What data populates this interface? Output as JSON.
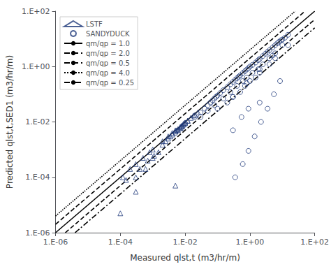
{
  "chart_data": {
    "type": "scatter",
    "xlabel": "Measured qlst,t (m3/hr/m)",
    "ylabel": "Predicted qlst,t,SED1 (m3/hr/m)",
    "log": true,
    "grid": false,
    "legend": "upper left",
    "xlim": [
      1e-06,
      100
    ],
    "ylim": [
      1e-06,
      100
    ],
    "xticks": [
      {
        "value": 1e-06,
        "label": "1.E-06"
      },
      {
        "value": 0.0001,
        "label": "1.E-04"
      },
      {
        "value": 0.01,
        "label": "1.E-02"
      },
      {
        "value": 1,
        "label": "1.E+00"
      },
      {
        "value": 100,
        "label": "1.E+02"
      }
    ],
    "yticks": [
      {
        "value": 1e-06,
        "label": "1.E-06"
      },
      {
        "value": 0.0001,
        "label": "1.E-04"
      },
      {
        "value": 0.01,
        "label": "1.E-02"
      },
      {
        "value": 1,
        "label": "1.E+00"
      },
      {
        "value": 100,
        "label": "1.E+02"
      }
    ],
    "series": [
      {
        "name": "LSTF",
        "type": "scatter",
        "marker": "triangle",
        "color": "#1F3A7A",
        "x": [
          0.00012,
          0.0002,
          0.0003,
          0.0005,
          0.0008,
          0.001,
          0.002,
          0.003,
          0.004,
          0.005,
          0.006,
          0.007,
          0.008,
          0.009,
          0.01,
          0.012,
          0.015,
          0.02,
          0.025,
          0.0003,
          0.0006,
          0.001,
          0.0015,
          0.0025,
          0.003,
          0.004,
          0.005,
          0.006,
          0.007,
          0.008,
          0.009,
          0.01,
          0.012,
          0.018,
          0.00015,
          0.0004,
          0.0007,
          0.0011,
          0.002,
          0.0035,
          0.0055,
          0.0075,
          0.0003,
          0.0001,
          0.005
        ],
        "values": [
          0.0001,
          0.0002,
          0.0003,
          0.0005,
          0.0008,
          0.001,
          0.002,
          0.003,
          0.004,
          0.005,
          0.005,
          0.006,
          0.007,
          0.008,
          0.009,
          0.011,
          0.014,
          0.018,
          0.022,
          0.0001,
          0.0002,
          0.0005,
          0.0008,
          0.002,
          0.0025,
          0.0035,
          0.0045,
          0.0055,
          0.0065,
          0.0075,
          0.0085,
          0.0095,
          0.011,
          0.017,
          8e-05,
          0.0002,
          0.0004,
          0.0006,
          0.0015,
          0.003,
          0.005,
          0.007,
          3e-05,
          5e-06,
          5e-05
        ]
      },
      {
        "name": "SANDYDUCK",
        "type": "scatter",
        "marker": "circle",
        "color": "#1F3A7A",
        "x": [
          0.005,
          0.008,
          0.01,
          0.02,
          0.03,
          0.04,
          0.05,
          0.06,
          0.07,
          0.08,
          0.09,
          0.1,
          0.12,
          0.15,
          0.2,
          0.25,
          0.3,
          0.35,
          0.4,
          0.45,
          0.5,
          0.6,
          0.7,
          0.8,
          0.9,
          1.0,
          1.2,
          1.5,
          1.8,
          2.0,
          2.5,
          3.0,
          3.5,
          4.0,
          5.0,
          6.0,
          7.0,
          8.0,
          9.0,
          10.0,
          12.0,
          15.0,
          0.03,
          0.05,
          0.08,
          0.15,
          0.25,
          0.4,
          0.6,
          0.8,
          1.2,
          1.8,
          2.5,
          4.0,
          6.0,
          0.2,
          0.5,
          1.0,
          2.0,
          5.0,
          10.0,
          0.3,
          0.7,
          1.5,
          4.0,
          0.1,
          0.3,
          0.8,
          2.0,
          6.0,
          15.0,
          0.9,
          2.0,
          0.55,
          0.3,
          0.35,
          0.6,
          0.9,
          1.4,
          2.2,
          3.5,
          5.5,
          8.5
        ],
        "values": [
          0.004,
          0.006,
          0.009,
          0.015,
          0.022,
          0.03,
          0.04,
          0.05,
          0.06,
          0.07,
          0.08,
          0.09,
          0.11,
          0.14,
          0.18,
          0.23,
          0.28,
          0.33,
          0.38,
          0.43,
          0.48,
          0.58,
          0.68,
          0.78,
          0.88,
          1.0,
          1.15,
          1.4,
          1.7,
          1.9,
          2.4,
          2.9,
          3.4,
          3.9,
          4.9,
          5.9,
          6.9,
          7.9,
          8.9,
          9.5,
          11.0,
          14.0,
          0.015,
          0.025,
          0.04,
          0.07,
          0.12,
          0.2,
          0.3,
          0.4,
          0.6,
          0.8,
          1.2,
          2.0,
          3.0,
          0.05,
          0.12,
          0.3,
          0.8,
          2.5,
          6.0,
          0.08,
          0.2,
          0.4,
          1.2,
          0.03,
          0.08,
          0.25,
          0.6,
          2.0,
          6.0,
          0.03,
          0.05,
          0.015,
          0.005,
          0.0001,
          0.0003,
          0.0009,
          0.003,
          0.01,
          0.03,
          0.1,
          0.3
        ]
      },
      {
        "name": "qm/qp = 1.0",
        "type": "line",
        "line_style": "solid",
        "color": "#000000",
        "x": [
          1e-06,
          100
        ],
        "values": [
          1e-06,
          100
        ]
      },
      {
        "name": "qm/qp = 2.0",
        "type": "line",
        "line_style": "dashed",
        "color": "#000000",
        "x": [
          1e-06,
          50
        ],
        "values": [
          2e-06,
          100
        ]
      },
      {
        "name": "qm/qp = 0.5",
        "type": "line",
        "line_style": "dashed",
        "color": "#000000",
        "x": [
          2e-06,
          100
        ],
        "values": [
          1e-06,
          50
        ]
      },
      {
        "name": "qm/qp = 4.0",
        "type": "line",
        "line_style": "dotted",
        "color": "#000000",
        "x": [
          1e-06,
          25
        ],
        "values": [
          4e-06,
          100
        ]
      },
      {
        "name": "qm/qp = 0.25",
        "type": "line",
        "line_style": "dashdot",
        "color": "#000000",
        "x": [
          4e-06,
          100
        ],
        "values": [
          1e-06,
          25
        ]
      }
    ]
  }
}
